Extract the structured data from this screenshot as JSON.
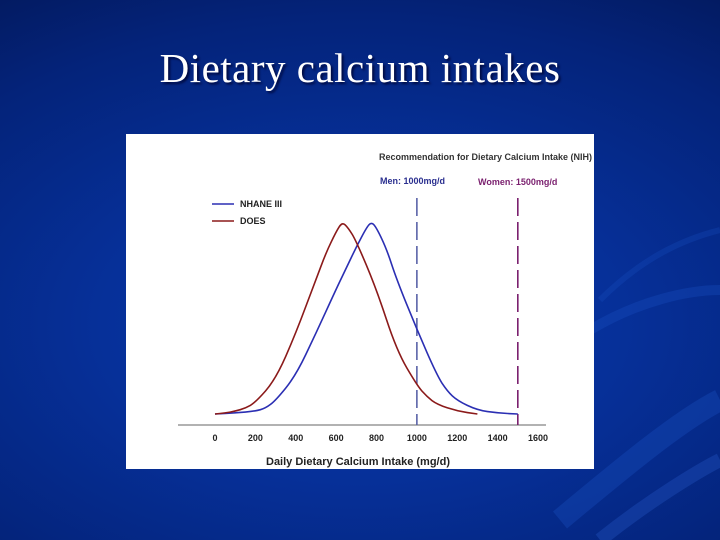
{
  "slide": {
    "title": "Dietary calcium intakes"
  },
  "colors": {
    "nhane": "#2b2fb3",
    "does": "#8b1a1a",
    "men_line": "#5a63a8",
    "women_line": "#7a1f6e"
  },
  "chart_data": {
    "type": "line",
    "title": "",
    "xlabel": "Daily Dietary Calcium Intake (mg/d)",
    "ylabel": "",
    "xlim": [
      0,
      1600
    ],
    "ylim": [
      0,
      1
    ],
    "x_ticks": [
      0,
      200,
      400,
      600,
      800,
      1000,
      1200,
      1400,
      1600
    ],
    "legend": {
      "placement": "top-left"
    },
    "series": [
      {
        "name": "NHANE III",
        "color": "#2b2fb3",
        "points": [
          [
            0,
            0.0
          ],
          [
            100,
            0.005
          ],
          [
            200,
            0.015
          ],
          [
            250,
            0.03
          ],
          [
            300,
            0.07
          ],
          [
            400,
            0.2
          ],
          [
            500,
            0.42
          ],
          [
            600,
            0.65
          ],
          [
            650,
            0.76
          ],
          [
            700,
            0.87
          ],
          [
            750,
            0.97
          ],
          [
            775,
            1.0
          ],
          [
            800,
            0.97
          ],
          [
            850,
            0.86
          ],
          [
            900,
            0.7
          ],
          [
            1000,
            0.44
          ],
          [
            1100,
            0.2
          ],
          [
            1150,
            0.12
          ],
          [
            1200,
            0.07
          ],
          [
            1300,
            0.02
          ],
          [
            1400,
            0.005
          ],
          [
            1500,
            0.0
          ]
        ]
      },
      {
        "name": "DOES",
        "color": "#8b1a1a",
        "points": [
          [
            0,
            0.0
          ],
          [
            50,
            0.005
          ],
          [
            100,
            0.015
          ],
          [
            150,
            0.03
          ],
          [
            200,
            0.06
          ],
          [
            300,
            0.18
          ],
          [
            400,
            0.42
          ],
          [
            500,
            0.7
          ],
          [
            550,
            0.84
          ],
          [
            600,
            0.95
          ],
          [
            630,
            1.0
          ],
          [
            660,
            0.97
          ],
          [
            700,
            0.9
          ],
          [
            800,
            0.65
          ],
          [
            900,
            0.33
          ],
          [
            1000,
            0.15
          ],
          [
            1050,
            0.09
          ],
          [
            1100,
            0.05
          ],
          [
            1200,
            0.015
          ],
          [
            1300,
            0.0
          ]
        ]
      }
    ],
    "annotations": {
      "heading": "Recommendation for Dietary Calcium Intake (NIH)",
      "lines": [
        {
          "label": "Men: 1000mg/d",
          "x": 1000,
          "color": "#5a63a8"
        },
        {
          "label": "Women: 1500mg/d",
          "x": 1500,
          "color": "#7a1f6e"
        }
      ]
    }
  }
}
